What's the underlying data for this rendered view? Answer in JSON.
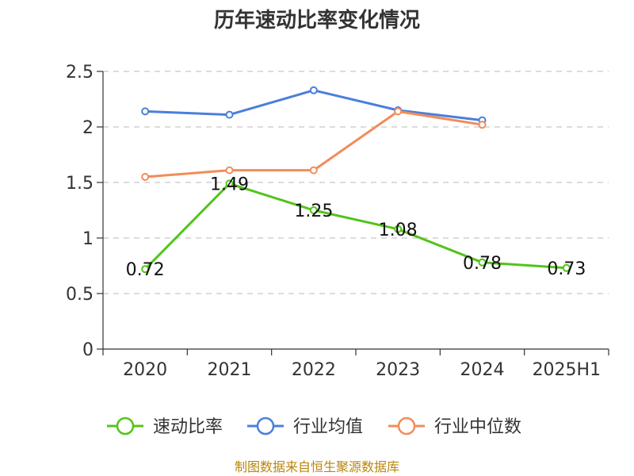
{
  "chart_data": {
    "type": "line",
    "title": "历年速动比率变化情况",
    "categories": [
      "2020",
      "2021",
      "2022",
      "2023",
      "2024",
      "2025H1"
    ],
    "ylim": [
      0,
      2.5
    ],
    "yticks": [
      "0",
      "0.5",
      "1",
      "1.5",
      "2",
      "2.5"
    ],
    "yticks_values": [
      0,
      0.5,
      1,
      1.5,
      2,
      2.5
    ],
    "grid": true,
    "legend_position": "bottom",
    "series": [
      {
        "name": "速动比率",
        "color": "#52c41a",
        "values": [
          0.72,
          1.49,
          1.25,
          1.08,
          0.78,
          0.73
        ],
        "labels": [
          "0.72",
          "1.49",
          "1.25",
          "1.08",
          "0.78",
          "0.73"
        ]
      },
      {
        "name": "行业均值",
        "color": "#4a7fdb",
        "values": [
          2.14,
          2.11,
          2.33,
          2.15,
          2.06,
          null
        ]
      },
      {
        "name": "行业中位数",
        "color": "#f28c5a",
        "values": [
          1.55,
          1.61,
          1.61,
          2.14,
          2.02,
          null
        ]
      }
    ],
    "source": "制图数据来自恒生聚源数据库"
  }
}
